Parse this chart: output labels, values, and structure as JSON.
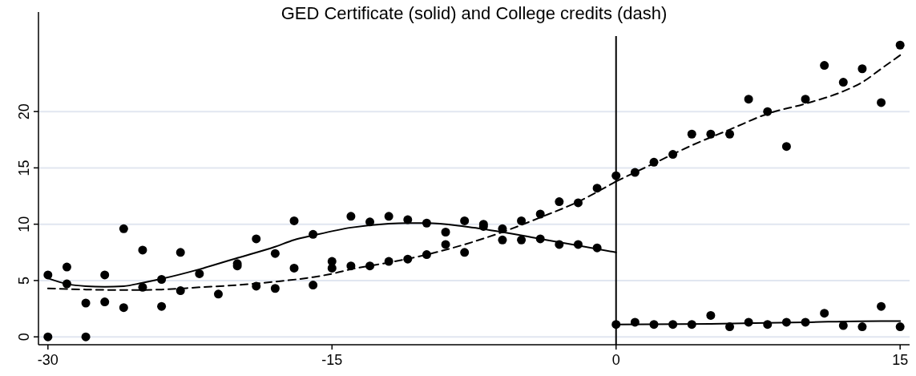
{
  "chart_data": {
    "type": "scatter",
    "title": "GED Certificate (solid) and College credits (dash)",
    "xlim": [
      -30.5,
      15.5
    ],
    "xticks": [
      -30,
      -15,
      0,
      15
    ],
    "ylim": [
      -0.7,
      26.7
    ],
    "yticks": [
      0,
      5,
      10,
      15,
      20
    ],
    "grid": "y",
    "ref_lines": [
      {
        "axis": "x",
        "value": 0,
        "color": "#000000"
      }
    ],
    "series": [
      {
        "marker": "circle",
        "color": "#000000",
        "x": [
          -30,
          -29,
          -28,
          -27,
          -26,
          -25,
          -24,
          -23,
          -22,
          -21,
          -20,
          -19,
          -18,
          -17,
          -16,
          -15,
          -14,
          -13,
          -12,
          -11,
          -10,
          -9,
          -8,
          -7,
          -6,
          -5,
          -4,
          -3,
          -2,
          -1,
          0,
          1,
          2,
          3,
          4,
          5,
          6,
          7,
          8,
          9,
          10,
          11,
          12,
          13,
          14,
          15
        ],
        "values": [
          5.5,
          6.2,
          3.0,
          5.5,
          9.6,
          7.7,
          5.1,
          7.5,
          5.6,
          3.8,
          6.5,
          8.7,
          7.4,
          10.3,
          9.1,
          6.7,
          10.7,
          10.2,
          10.7,
          10.4,
          10.1,
          9.3,
          10.3,
          10.0,
          8.6,
          8.6,
          8.7,
          8.2,
          8.2,
          7.9,
          1.1,
          1.3,
          1.1,
          1.1,
          1.1,
          1.9,
          0.9,
          1.3,
          1.1,
          1.3,
          1.3,
          2.1,
          1.0,
          0.9,
          2.7,
          0.9
        ]
      },
      {
        "marker": "circle",
        "color": "#000000",
        "x": [
          -30,
          -29,
          -28,
          -27,
          -26,
          -25,
          -24,
          -23,
          -22,
          -21,
          -20,
          -19,
          -18,
          -17,
          -16,
          -15,
          -14,
          -13,
          -12,
          -11,
          -10,
          -9,
          -8,
          -7,
          -6,
          -5,
          -4,
          -3,
          -2,
          -1,
          0,
          1,
          2,
          3,
          4,
          5,
          6,
          7,
          8,
          9,
          10,
          11,
          12,
          13,
          14,
          15
        ],
        "values": [
          0,
          4.7,
          0,
          3.1,
          2.6,
          4.4,
          2.7,
          4.1,
          null,
          null,
          6.3,
          4.5,
          4.3,
          6.1,
          4.6,
          6.1,
          6.3,
          6.3,
          6.7,
          6.9,
          7.3,
          8.2,
          7.5,
          9.8,
          9.6,
          10.3,
          10.9,
          12.0,
          11.9,
          13.2,
          14.3,
          14.6,
          15.5,
          16.2,
          18.0,
          18.0,
          18.0,
          21.1,
          20.0,
          16.9,
          21.1,
          24.1,
          22.6,
          23.8,
          20.8,
          25.9
        ]
      },
      {
        "type": "line",
        "marker": "none",
        "line_style": "solid",
        "color": "#000000",
        "x": [
          -30,
          -29,
          -28,
          -27,
          -26,
          -25,
          -24,
          -22,
          -20,
          -18,
          -17,
          -16,
          -14,
          -12,
          -11,
          -10,
          -8,
          -6,
          -4,
          -2,
          0
        ],
        "values": [
          5.2,
          4.7,
          4.5,
          4.45,
          4.5,
          4.8,
          5.15,
          6.0,
          7.0,
          8.0,
          8.6,
          9.0,
          9.7,
          10.05,
          10.1,
          10.1,
          9.8,
          9.3,
          8.7,
          8.1,
          7.5
        ]
      },
      {
        "type": "line",
        "marker": "none",
        "line_style": "dashed",
        "color": "#000000",
        "x": [
          -30,
          -28,
          -26,
          -24,
          -22,
          -20,
          -18,
          -16,
          -15,
          -14,
          -12,
          -10,
          -8,
          -6,
          -4,
          -2,
          0
        ],
        "values": [
          4.3,
          4.2,
          4.15,
          4.2,
          4.4,
          4.6,
          4.9,
          5.3,
          5.6,
          6.0,
          6.6,
          7.3,
          8.2,
          9.3,
          10.6,
          12.0,
          13.8
        ]
      },
      {
        "type": "line",
        "marker": "none",
        "line_style": "solid",
        "color": "#000000",
        "x": [
          0,
          5,
          10,
          14,
          15
        ],
        "values": [
          1.1,
          1.15,
          1.3,
          1.4,
          1.4
        ]
      },
      {
        "type": "line",
        "marker": "none",
        "line_style": "dashed",
        "color": "#000000",
        "x": [
          0,
          2,
          4,
          6,
          8,
          10,
          12,
          13,
          14,
          15
        ],
        "values": [
          13.8,
          15.4,
          17.0,
          18.4,
          19.8,
          20.7,
          21.8,
          22.6,
          23.8,
          25.0
        ]
      }
    ]
  }
}
